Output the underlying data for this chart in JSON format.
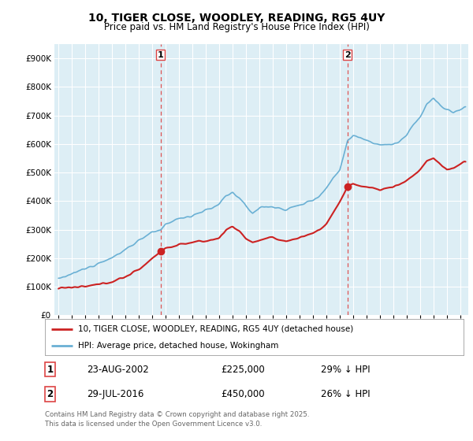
{
  "title": "10, TIGER CLOSE, WOODLEY, READING, RG5 4UY",
  "subtitle": "Price paid vs. HM Land Registry's House Price Index (HPI)",
  "legend_line1": "10, TIGER CLOSE, WOODLEY, READING, RG5 4UY (detached house)",
  "legend_line2": "HPI: Average price, detached house, Wokingham",
  "marker1_date": "23-AUG-2002",
  "marker1_price": 225000,
  "marker1_label": "29% ↓ HPI",
  "marker1_year": 2002.64,
  "marker2_date": "29-JUL-2016",
  "marker2_price": 450000,
  "marker2_label": "26% ↓ HPI",
  "marker2_year": 2016.58,
  "footer": "Contains HM Land Registry data © Crown copyright and database right 2025.\nThis data is licensed under the Open Government Licence v3.0.",
  "hpi_color": "#6ab0d4",
  "price_color": "#cc2222",
  "marker_vline_color": "#dd4444",
  "bg_color": "#ddeef5",
  "grid_color": "#ffffff",
  "ylim": [
    0,
    950000
  ],
  "yticks": [
    0,
    100000,
    200000,
    300000,
    400000,
    500000,
    600000,
    700000,
    800000,
    900000
  ],
  "xlim_start": 1994.7,
  "xlim_end": 2025.6
}
